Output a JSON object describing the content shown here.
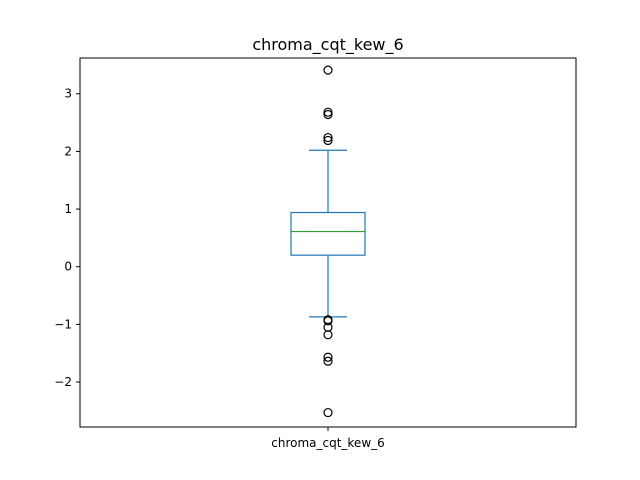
{
  "chart_data": {
    "type": "box",
    "title": "chroma_cqt_kew_6",
    "xlabel": "",
    "ylabel": "",
    "categories": [
      "chroma_cqt_kew_6"
    ],
    "ylim": [
      -2.78,
      3.62
    ],
    "yticks": [
      -2,
      -1,
      0,
      1,
      2,
      3
    ],
    "ytick_labels": [
      "−2",
      "−1",
      "0",
      "1",
      "2",
      "3"
    ],
    "grid": false,
    "legend": "none",
    "boxes": [
      {
        "name": "chroma_cqt_kew_6",
        "whisker_low": -0.87,
        "q1": 0.2,
        "median": 0.61,
        "q3": 0.94,
        "whisker_high": 2.02,
        "outliers": [
          3.41,
          2.68,
          2.64,
          2.24,
          2.19,
          -0.92,
          -0.94,
          -1.05,
          -1.18,
          -1.57,
          -1.64,
          -2.53
        ]
      }
    ],
    "colors": {
      "box": "#1f77b4",
      "median": "#2ca02c",
      "flier": "#000000",
      "axes": "#000000"
    }
  }
}
